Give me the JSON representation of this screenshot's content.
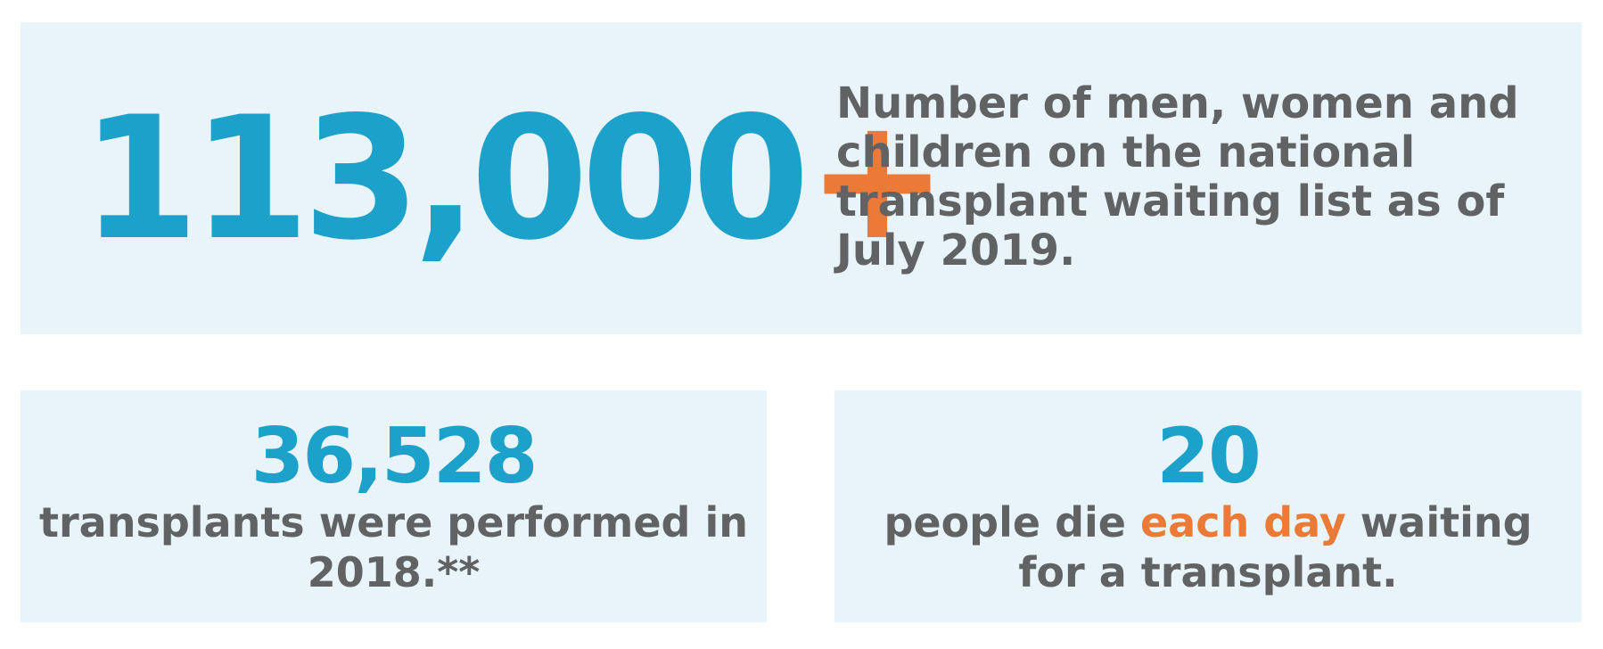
{
  "waiting_list": {
    "number": "113,000",
    "suffix": "+",
    "description": "Number of men, women and children on the national transplant waiting list as of July 2019."
  },
  "transplants": {
    "number": "36,528",
    "description": "transplants were performed in 2018.**"
  },
  "deaths": {
    "number": "20",
    "text_before": "people die ",
    "text_highlight": "each day",
    "text_after": " waiting for a transplant."
  },
  "colors": {
    "accent_blue": "#1ca1cb",
    "accent_orange": "#ea7a36",
    "text_gray": "#606264",
    "panel_background": "#e8f4fa"
  }
}
